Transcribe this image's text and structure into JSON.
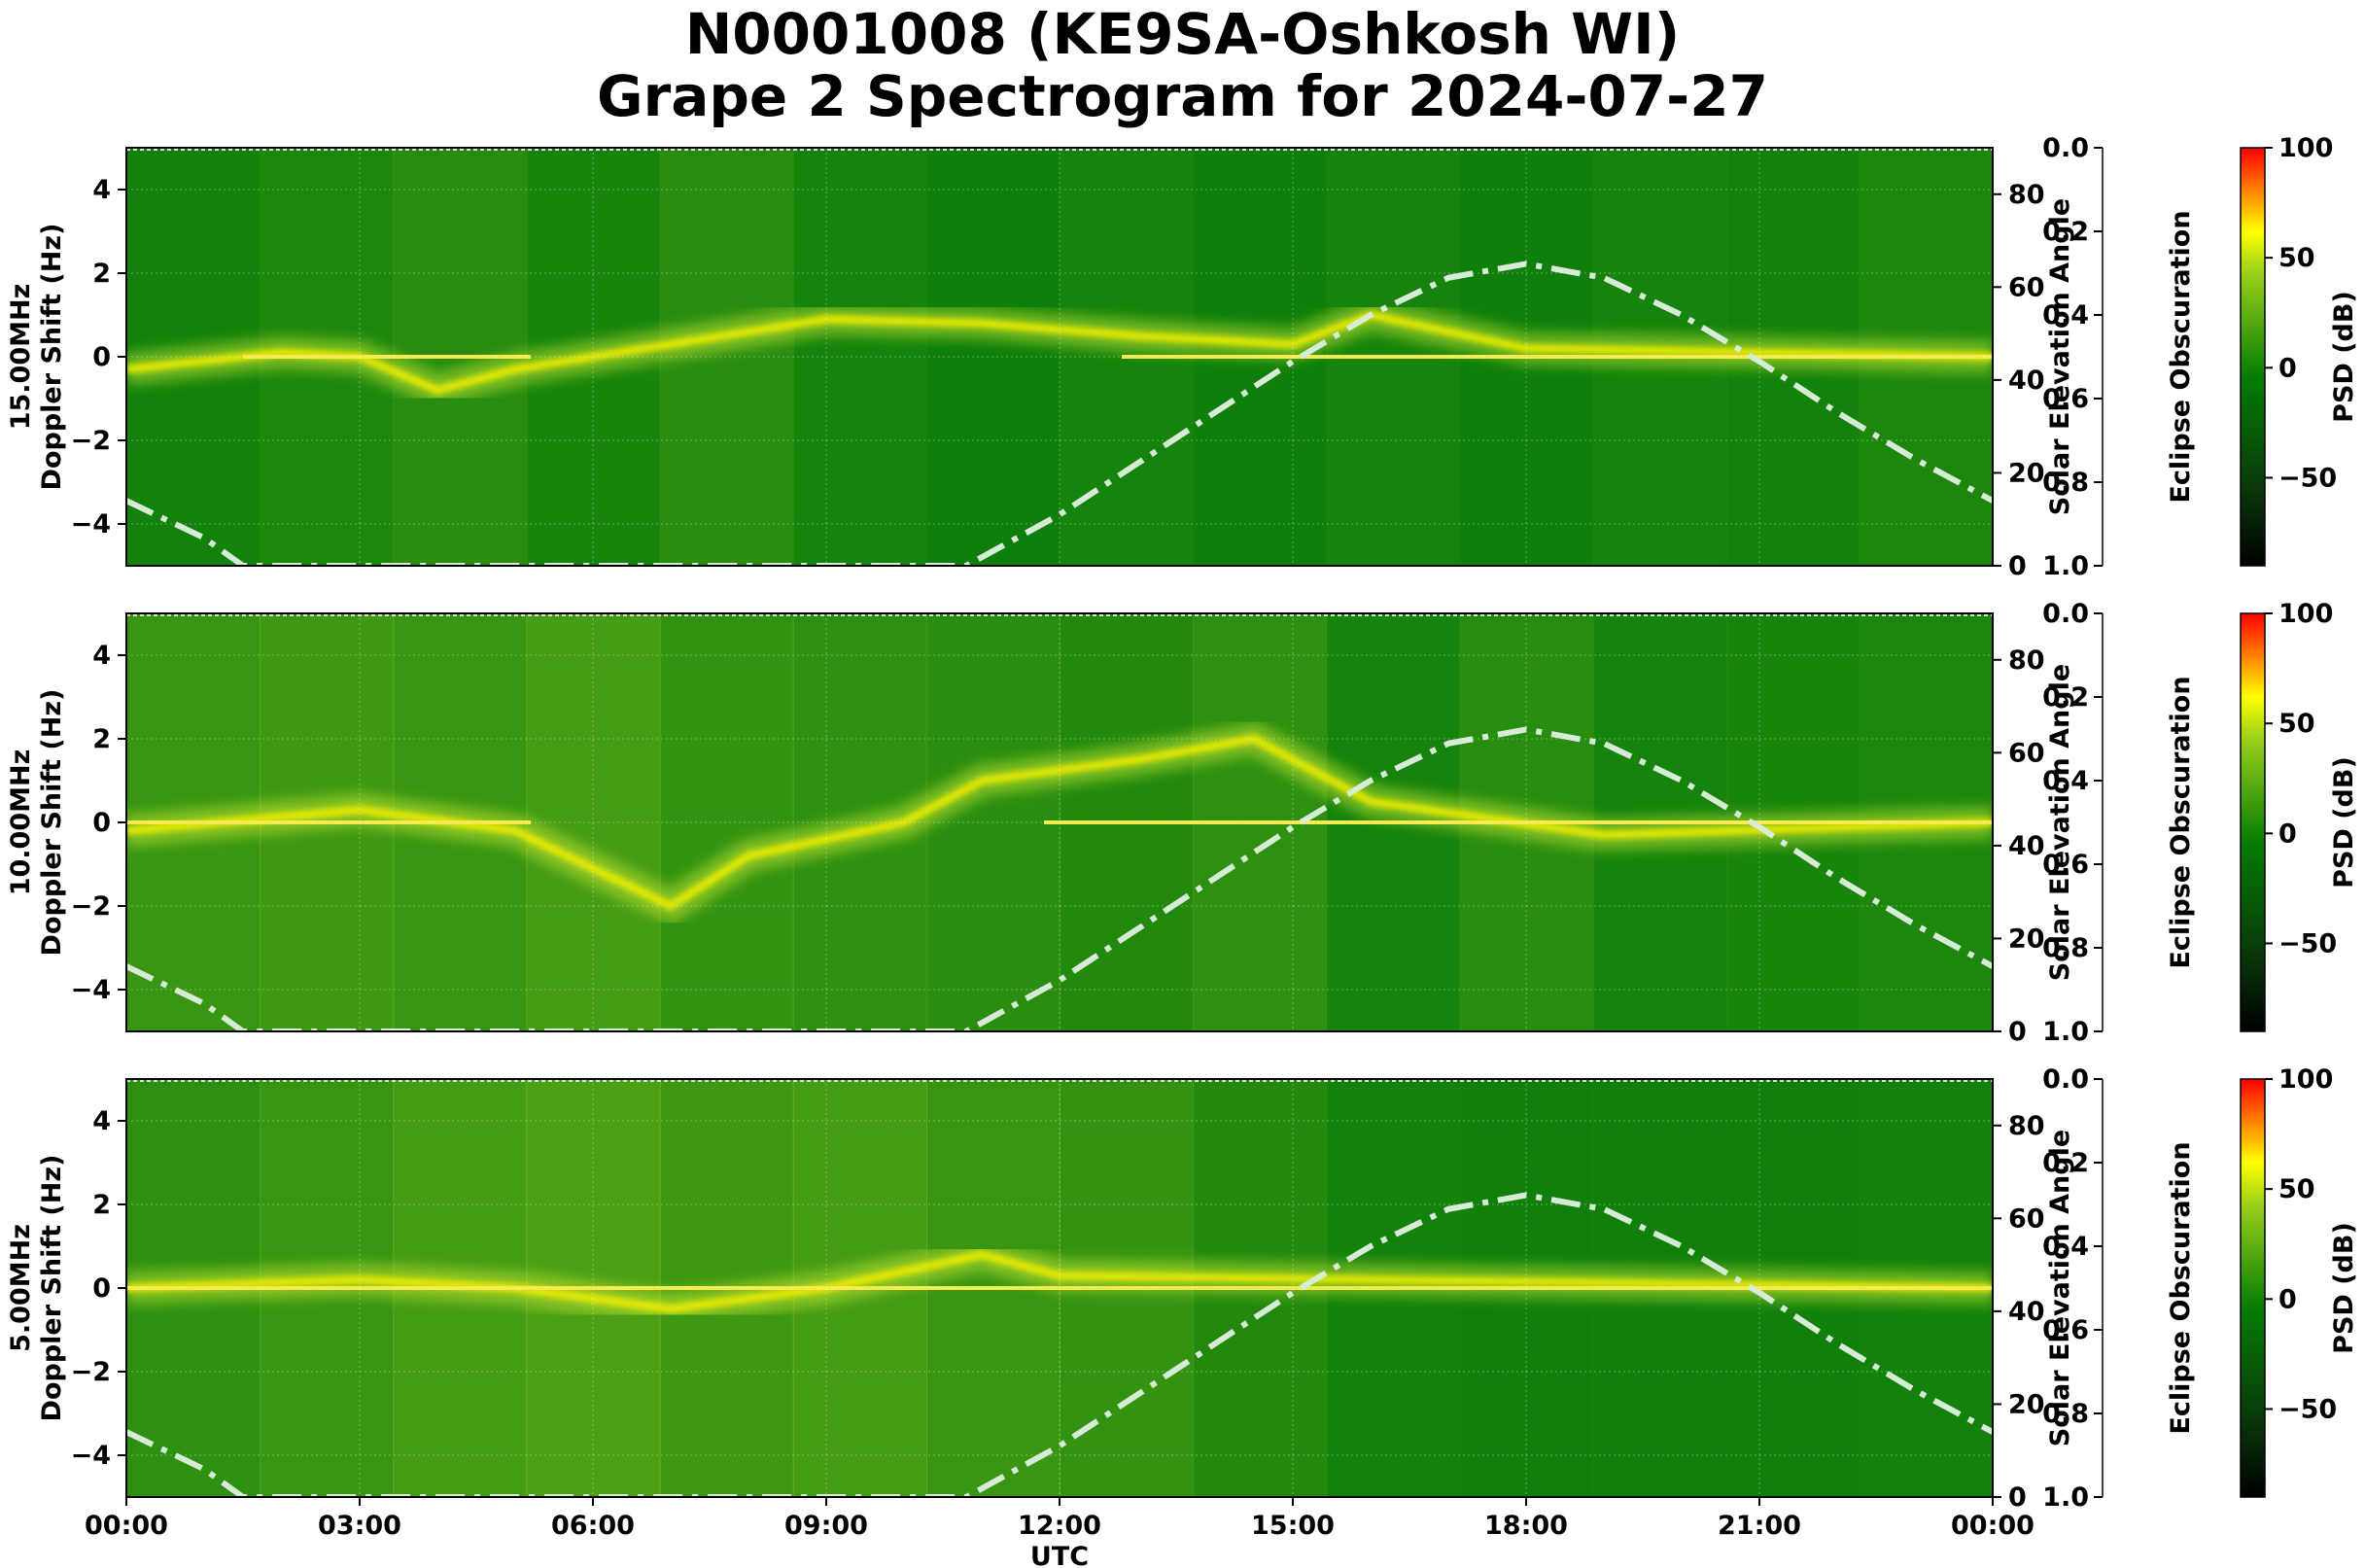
{
  "chart_data": {
    "type": "heatmap",
    "title": "N0001008 (KE9SA-Oshkosh WI)",
    "subtitle": "Grape 2 Spectrogram for 2024-07-27",
    "xlabel": "UTC",
    "x_ticks": [
      "00:00",
      "03:00",
      "06:00",
      "09:00",
      "12:00",
      "15:00",
      "18:00",
      "21:00",
      "00:00"
    ],
    "xlim_hours": [
      0,
      24
    ],
    "ylabel": "Doppler Shift (Hz)",
    "ylim": [
      -5,
      5
    ],
    "y_ticks": [
      -4,
      -2,
      0,
      2,
      4
    ],
    "y2label": "Solar Elevation Angle",
    "y2lim": [
      0,
      90
    ],
    "y2_ticks": [
      0,
      20,
      40,
      60,
      80
    ],
    "eclipse_label": "Eclipse Obscuration",
    "eclipse_ticks": [
      "0.0",
      "0.2",
      "0.4",
      "0.6",
      "0.8",
      "1.0"
    ],
    "colorbar_label": "PSD (dB)",
    "colorbar_ticks": [
      "100",
      "50",
      "0",
      "−50"
    ],
    "colorbar_range": [
      -90,
      100
    ],
    "grid": true,
    "panels": [
      {
        "frequency_label": "15.00MHz",
        "carrier_segments": [
          [
            1.5,
            5.2
          ],
          [
            12.8,
            24
          ]
        ],
        "activity": [
          [
            0,
            8
          ],
          [
            8,
            16
          ],
          [
            16,
            24
          ],
          [
            24,
            12
          ],
          [
            32,
            24
          ],
          [
            40,
            10
          ],
          [
            48,
            4
          ],
          [
            56,
            10
          ],
          [
            64,
            4
          ],
          [
            72,
            10
          ],
          [
            80,
            4
          ],
          [
            88,
            10
          ],
          [
            96,
            8
          ],
          [
            104,
            16
          ]
        ],
        "doppler_trace": [
          {
            "h": 0,
            "hz": -0.3
          },
          {
            "h": 2,
            "hz": 0.1
          },
          {
            "h": 3,
            "hz": 0
          },
          {
            "h": 4,
            "hz": -0.8
          },
          {
            "h": 5,
            "hz": -0.3
          },
          {
            "h": 9,
            "hz": 0.9
          },
          {
            "h": 11,
            "hz": 0.8
          },
          {
            "h": 13,
            "hz": 0.5
          },
          {
            "h": 15,
            "hz": 0.3
          },
          {
            "h": 16,
            "hz": 1.0
          },
          {
            "h": 18,
            "hz": 0.2
          },
          {
            "h": 24,
            "hz": 0
          }
        ]
      },
      {
        "frequency_label": "10.00MHz",
        "carrier_segments": [
          [
            0,
            5.2
          ],
          [
            11.8,
            24
          ]
        ],
        "activity": [
          [
            0,
            40
          ],
          [
            8,
            45
          ],
          [
            16,
            40
          ],
          [
            24,
            50
          ],
          [
            32,
            34
          ],
          [
            40,
            30
          ],
          [
            48,
            26
          ],
          [
            56,
            20
          ],
          [
            64,
            30
          ],
          [
            72,
            10
          ],
          [
            80,
            24
          ],
          [
            88,
            10
          ],
          [
            96,
            12
          ],
          [
            104,
            16
          ]
        ],
        "doppler_trace": [
          {
            "h": 0,
            "hz": -0.2
          },
          {
            "h": 3,
            "hz": 0.3
          },
          {
            "h": 5,
            "hz": -0.2
          },
          {
            "h": 7,
            "hz": -2.0
          },
          {
            "h": 8,
            "hz": -0.8
          },
          {
            "h": 10,
            "hz": 0
          },
          {
            "h": 11,
            "hz": 1.0
          },
          {
            "h": 13,
            "hz": 1.5
          },
          {
            "h": 14.5,
            "hz": 2.0
          },
          {
            "h": 16,
            "hz": 0.5
          },
          {
            "h": 19,
            "hz": -0.3
          },
          {
            "h": 24,
            "hz": 0
          }
        ]
      },
      {
        "frequency_label": "5.00MHz",
        "carrier_segments": [
          [
            0,
            24
          ]
        ],
        "activity": [
          [
            0,
            30
          ],
          [
            8,
            40
          ],
          [
            16,
            50
          ],
          [
            24,
            55
          ],
          [
            32,
            45
          ],
          [
            40,
            50
          ],
          [
            48,
            40
          ],
          [
            56,
            35
          ],
          [
            64,
            20
          ],
          [
            72,
            8
          ],
          [
            80,
            6
          ],
          [
            88,
            6
          ],
          [
            96,
            6
          ],
          [
            104,
            8
          ]
        ],
        "doppler_trace": [
          {
            "h": 0,
            "hz": 0
          },
          {
            "h": 3,
            "hz": 0.2
          },
          {
            "h": 5,
            "hz": 0
          },
          {
            "h": 7,
            "hz": -0.5
          },
          {
            "h": 9,
            "hz": 0
          },
          {
            "h": 11,
            "hz": 0.8
          },
          {
            "h": 12,
            "hz": 0.3
          },
          {
            "h": 24,
            "hz": 0
          }
        ]
      }
    ],
    "solar_elevation": [
      {
        "h": 0,
        "deg": 14
      },
      {
        "h": 1,
        "deg": 6
      },
      {
        "h": 1.5,
        "deg": 0
      },
      {
        "h": 10.8,
        "deg": 0
      },
      {
        "h": 12,
        "deg": 11
      },
      {
        "h": 13,
        "deg": 22
      },
      {
        "h": 14,
        "deg": 33
      },
      {
        "h": 15,
        "deg": 44
      },
      {
        "h": 16,
        "deg": 54
      },
      {
        "h": 17,
        "deg": 62
      },
      {
        "h": 18,
        "deg": 65
      },
      {
        "h": 19,
        "deg": 62
      },
      {
        "h": 20,
        "deg": 54
      },
      {
        "h": 21,
        "deg": 44
      },
      {
        "h": 22,
        "deg": 33
      },
      {
        "h": 23,
        "deg": 23
      },
      {
        "h": 24,
        "deg": 14
      }
    ]
  }
}
